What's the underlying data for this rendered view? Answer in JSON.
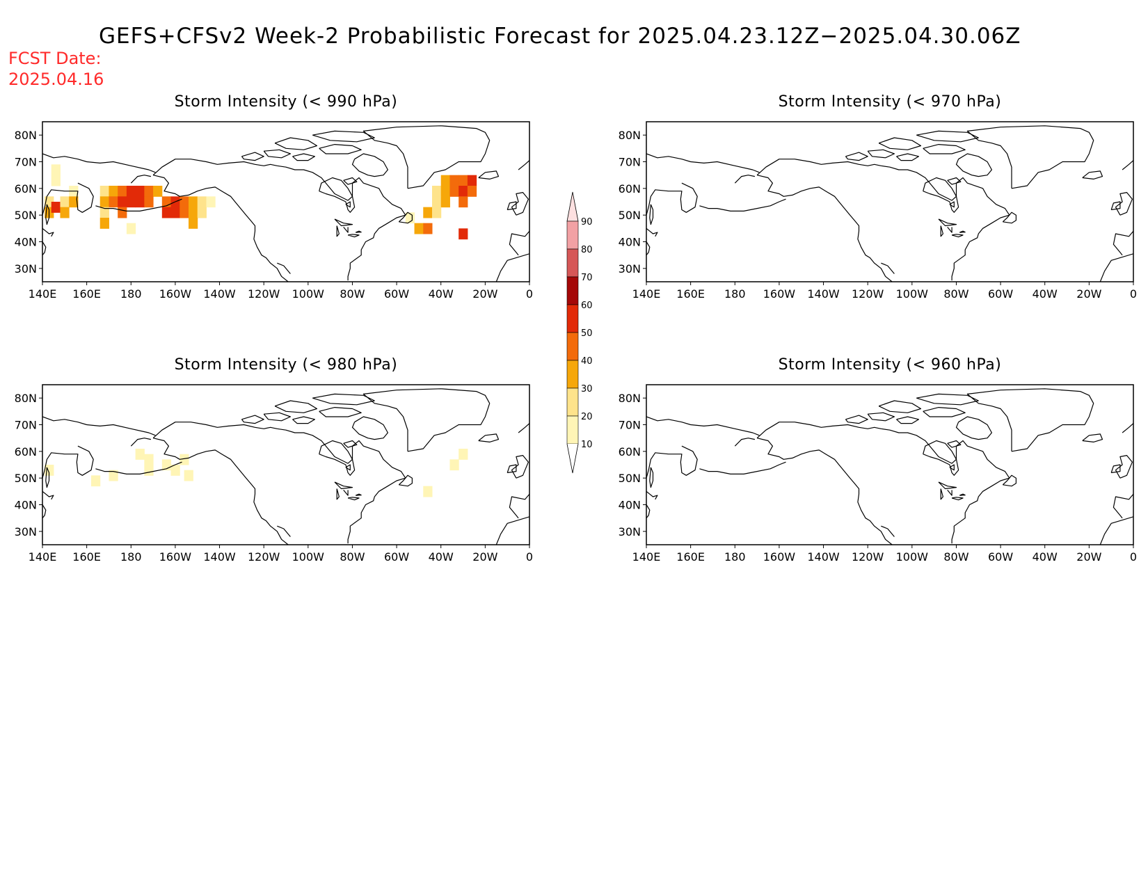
{
  "title": "GEFS+CFSv2 Week-2 Probabilistic Forecast for 2025.04.23.12Z−2025.04.30.06Z",
  "fcst_date": {
    "label": "FCST Date:",
    "value": "2025.04.16"
  },
  "axes": {
    "lon_ticks": [
      "140E",
      "160E",
      "180",
      "160W",
      "140W",
      "120W",
      "100W",
      "80W",
      "60W",
      "40W",
      "20W",
      "0"
    ],
    "lat_ticks": [
      "80N",
      "70N",
      "60N",
      "50N",
      "40N",
      "30N"
    ]
  },
  "colors": {
    "10": "#fff5b6",
    "20": "#fee38b",
    "30": "#f6a70a",
    "40": "#f36b0b",
    "50": "#e22a08",
    "60": "#a50808",
    "70": "#d65757",
    "80": "#f2a1a4",
    "90": "#fde0e0"
  },
  "colorbar": {
    "levels": [
      10,
      20,
      30,
      40,
      50,
      60,
      70,
      80,
      90
    ]
  },
  "panels": [
    {
      "id": "p990",
      "title": "Storm Intensity (< 990 hPa)"
    },
    {
      "id": "p970",
      "title": "Storm Intensity (< 970 hPa)"
    },
    {
      "id": "p980",
      "title": "Storm Intensity (< 980 hPa)"
    },
    {
      "id": "p960",
      "title": "Storm Intensity (< 960 hPa)"
    }
  ],
  "chart_data": [
    {
      "type": "heatmap",
      "title": "Storm Intensity (< 990 hPa)",
      "x_units": "longitude (deg E, 140E to 360)",
      "y_units": "latitude (deg N)",
      "cells": [
        {
          "lon": 146,
          "lat": 67,
          "v": 10
        },
        {
          "lon": 146,
          "lat": 63,
          "v": 10
        },
        {
          "lon": 143,
          "lat": 55,
          "v": 20
        },
        {
          "lon": 143,
          "lat": 51,
          "v": 30
        },
        {
          "lon": 146,
          "lat": 53,
          "v": 50
        },
        {
          "lon": 150,
          "lat": 55,
          "v": 20
        },
        {
          "lon": 150,
          "lat": 51,
          "v": 30
        },
        {
          "lon": 154,
          "lat": 59,
          "v": 10
        },
        {
          "lon": 154,
          "lat": 55,
          "v": 30
        },
        {
          "lon": 168,
          "lat": 59,
          "v": 20
        },
        {
          "lon": 172,
          "lat": 59,
          "v": 30
        },
        {
          "lon": 176,
          "lat": 59,
          "v": 40
        },
        {
          "lon": 180,
          "lat": 59,
          "v": 50
        },
        {
          "lon": 184,
          "lat": 59,
          "v": 50
        },
        {
          "lon": 188,
          "lat": 59,
          "v": 40
        },
        {
          "lon": 192,
          "lat": 59,
          "v": 30
        },
        {
          "lon": 168,
          "lat": 55,
          "v": 30
        },
        {
          "lon": 172,
          "lat": 55,
          "v": 40
        },
        {
          "lon": 176,
          "lat": 55,
          "v": 50
        },
        {
          "lon": 180,
          "lat": 55,
          "v": 50
        },
        {
          "lon": 184,
          "lat": 55,
          "v": 50
        },
        {
          "lon": 188,
          "lat": 55,
          "v": 40
        },
        {
          "lon": 196,
          "lat": 55,
          "v": 40
        },
        {
          "lon": 200,
          "lat": 55,
          "v": 50
        },
        {
          "lon": 204,
          "lat": 55,
          "v": 40
        },
        {
          "lon": 208,
          "lat": 55,
          "v": 30
        },
        {
          "lon": 212,
          "lat": 55,
          "v": 20
        },
        {
          "lon": 216,
          "lat": 55,
          "v": 10
        },
        {
          "lon": 168,
          "lat": 51,
          "v": 20
        },
        {
          "lon": 176,
          "lat": 51,
          "v": 40
        },
        {
          "lon": 196,
          "lat": 51,
          "v": 50
        },
        {
          "lon": 200,
          "lat": 51,
          "v": 50
        },
        {
          "lon": 204,
          "lat": 51,
          "v": 40
        },
        {
          "lon": 208,
          "lat": 51,
          "v": 30
        },
        {
          "lon": 212,
          "lat": 51,
          "v": 20
        },
        {
          "lon": 168,
          "lat": 47,
          "v": 30
        },
        {
          "lon": 208,
          "lat": 47,
          "v": 30
        },
        {
          "lon": 180,
          "lat": 45,
          "v": 10
        },
        {
          "lon": 322,
          "lat": 63,
          "v": 30
        },
        {
          "lon": 326,
          "lat": 63,
          "v": 40
        },
        {
          "lon": 330,
          "lat": 63,
          "v": 40
        },
        {
          "lon": 334,
          "lat": 63,
          "v": 50
        },
        {
          "lon": 318,
          "lat": 59,
          "v": 20
        },
        {
          "lon": 322,
          "lat": 59,
          "v": 30
        },
        {
          "lon": 326,
          "lat": 59,
          "v": 40
        },
        {
          "lon": 330,
          "lat": 59,
          "v": 50
        },
        {
          "lon": 334,
          "lat": 59,
          "v": 40
        },
        {
          "lon": 318,
          "lat": 55,
          "v": 20
        },
        {
          "lon": 322,
          "lat": 55,
          "v": 30
        },
        {
          "lon": 330,
          "lat": 55,
          "v": 40
        },
        {
          "lon": 314,
          "lat": 51,
          "v": 30
        },
        {
          "lon": 318,
          "lat": 51,
          "v": 20
        },
        {
          "lon": 306,
          "lat": 49,
          "v": 10
        },
        {
          "lon": 310,
          "lat": 45,
          "v": 30
        },
        {
          "lon": 314,
          "lat": 45,
          "v": 40
        },
        {
          "lon": 330,
          "lat": 43,
          "v": 50
        }
      ]
    },
    {
      "type": "heatmap",
      "title": "Storm Intensity (< 970 hPa)",
      "cells": []
    },
    {
      "type": "heatmap",
      "title": "Storm Intensity (< 980 hPa)",
      "cells": [
        {
          "lon": 143,
          "lat": 53,
          "v": 10
        },
        {
          "lon": 164,
          "lat": 49,
          "v": 10
        },
        {
          "lon": 172,
          "lat": 51,
          "v": 10
        },
        {
          "lon": 184,
          "lat": 59,
          "v": 10
        },
        {
          "lon": 188,
          "lat": 57,
          "v": 10
        },
        {
          "lon": 188,
          "lat": 53,
          "v": 10
        },
        {
          "lon": 196,
          "lat": 55,
          "v": 10
        },
        {
          "lon": 200,
          "lat": 53,
          "v": 10
        },
        {
          "lon": 204,
          "lat": 57,
          "v": 10
        },
        {
          "lon": 206,
          "lat": 51,
          "v": 10
        },
        {
          "lon": 314,
          "lat": 45,
          "v": 10
        },
        {
          "lon": 326,
          "lat": 55,
          "v": 10
        },
        {
          "lon": 330,
          "lat": 59,
          "v": 10
        }
      ]
    },
    {
      "type": "heatmap",
      "title": "Storm Intensity (< 960 hPa)",
      "cells": []
    }
  ]
}
